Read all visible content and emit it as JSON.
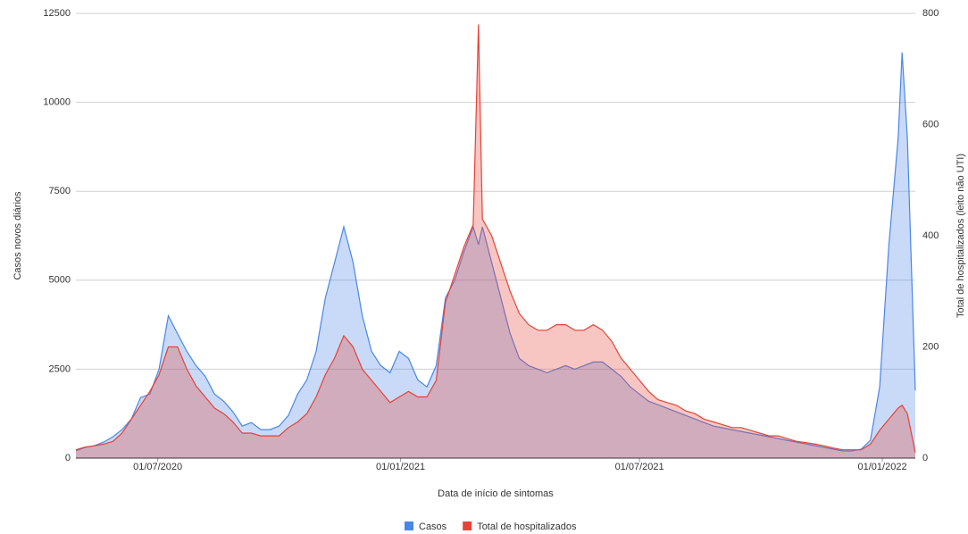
{
  "chart_data": {
    "type": "area",
    "xlabel": "Data de início de sintomas",
    "ylabel": "Casos novos diários",
    "y2label": "Total de hospitalizados (leito não UTI)",
    "x": [
      "30/04/2020",
      "07/05/2020",
      "14/05/2020",
      "21/05/2020",
      "28/05/2020",
      "04/06/2020",
      "11/06/2020",
      "18/06/2020",
      "25/06/2020",
      "02/07/2020",
      "09/07/2020",
      "16/07/2020",
      "23/07/2020",
      "30/07/2020",
      "06/08/2020",
      "13/08/2020",
      "20/08/2020",
      "27/08/2020",
      "03/09/2020",
      "10/09/2020",
      "17/09/2020",
      "24/09/2020",
      "01/10/2020",
      "08/10/2020",
      "15/10/2020",
      "22/10/2020",
      "29/10/2020",
      "05/11/2020",
      "12/11/2020",
      "19/11/2020",
      "26/11/2020",
      "03/12/2020",
      "10/12/2020",
      "17/12/2020",
      "24/12/2020",
      "31/12/2020",
      "07/01/2021",
      "14/01/2021",
      "21/01/2021",
      "28/01/2021",
      "04/02/2021",
      "11/02/2021",
      "18/02/2021",
      "25/02/2021",
      "01/03/2021",
      "04/03/2021",
      "11/03/2021",
      "18/03/2021",
      "25/03/2021",
      "01/04/2021",
      "08/04/2021",
      "15/04/2021",
      "22/04/2021",
      "29/04/2021",
      "06/05/2021",
      "13/05/2021",
      "20/05/2021",
      "27/05/2021",
      "03/06/2021",
      "10/06/2021",
      "17/06/2021",
      "24/06/2021",
      "01/07/2021",
      "08/07/2021",
      "15/07/2021",
      "22/07/2021",
      "29/07/2021",
      "05/08/2021",
      "12/08/2021",
      "19/08/2021",
      "26/08/2021",
      "02/09/2021",
      "09/09/2021",
      "16/09/2021",
      "23/09/2021",
      "30/09/2021",
      "07/10/2021",
      "14/10/2021",
      "21/10/2021",
      "28/10/2021",
      "04/11/2021",
      "11/11/2021",
      "18/11/2021",
      "25/11/2021",
      "02/12/2021",
      "09/12/2021",
      "16/12/2021",
      "23/12/2021",
      "30/12/2021",
      "06/01/2022",
      "13/01/2022",
      "16/01/2022",
      "20/01/2022",
      "26/01/2022"
    ],
    "series": [
      {
        "name": "Casos",
        "color": "#4a86e8",
        "axis": "y",
        "values": [
          200,
          300,
          350,
          450,
          600,
          800,
          1100,
          1700,
          1800,
          2500,
          4000,
          3500,
          3000,
          2600,
          2300,
          1800,
          1600,
          1300,
          900,
          1000,
          800,
          800,
          900,
          1200,
          1800,
          2200,
          3000,
          4500,
          5500,
          6500,
          5500,
          4000,
          3000,
          2600,
          2400,
          3000,
          2800,
          2200,
          2000,
          2600,
          4500,
          5000,
          5800,
          6500,
          6000,
          6500,
          5500,
          4500,
          3500,
          2800,
          2600,
          2500,
          2400,
          2500,
          2600,
          2500,
          2600,
          2700,
          2700,
          2500,
          2300,
          2000,
          1800,
          1600,
          1500,
          1400,
          1300,
          1200,
          1100,
          1000,
          900,
          850,
          800,
          750,
          700,
          650,
          600,
          550,
          500,
          450,
          400,
          350,
          300,
          250,
          200,
          200,
          250,
          500,
          2000,
          6000,
          9000,
          11400,
          9000,
          1900
        ]
      },
      {
        "name": "Total de hospitalizados",
        "color": "#e84236",
        "axis": "y2",
        "values": [
          15,
          20,
          22,
          25,
          30,
          45,
          70,
          95,
          120,
          150,
          200,
          200,
          160,
          130,
          110,
          90,
          80,
          65,
          45,
          45,
          40,
          40,
          40,
          55,
          65,
          80,
          110,
          150,
          180,
          220,
          200,
          160,
          140,
          120,
          100,
          110,
          120,
          110,
          110,
          140,
          280,
          330,
          380,
          420,
          780,
          430,
          400,
          350,
          300,
          260,
          240,
          230,
          230,
          240,
          240,
          230,
          230,
          240,
          230,
          210,
          180,
          160,
          140,
          120,
          105,
          100,
          95,
          85,
          80,
          70,
          65,
          60,
          55,
          55,
          50,
          45,
          40,
          40,
          35,
          30,
          28,
          25,
          22,
          18,
          15,
          15,
          15,
          25,
          50,
          70,
          90,
          95,
          80,
          10
        ]
      }
    ],
    "xlim": [
      "30/04/2020",
      "26/01/2022"
    ],
    "xticks": [
      "01/07/2020",
      "01/01/2021",
      "01/07/2021",
      "01/01/2022"
    ],
    "ylim": [
      0,
      12500
    ],
    "yticks": [
      0,
      2500,
      5000,
      7500,
      10000,
      12500
    ],
    "y2lim": [
      0,
      800
    ],
    "y2ticks": [
      0,
      200,
      400,
      600,
      800
    ],
    "grid": true,
    "legend": "bottom"
  }
}
